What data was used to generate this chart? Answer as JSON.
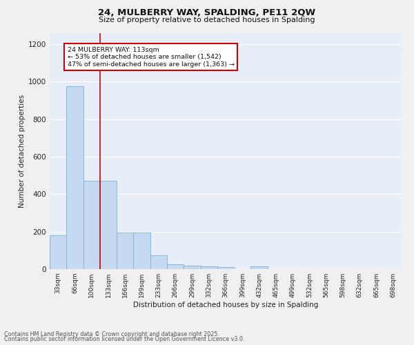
{
  "title1": "24, MULBERRY WAY, SPALDING, PE11 2QW",
  "title2": "Size of property relative to detached houses in Spalding",
  "xlabel": "Distribution of detached houses by size in Spalding",
  "ylabel": "Number of detached properties",
  "categories": [
    "33sqm",
    "66sqm",
    "100sqm",
    "133sqm",
    "166sqm",
    "199sqm",
    "233sqm",
    "266sqm",
    "299sqm",
    "332sqm",
    "366sqm",
    "399sqm",
    "432sqm",
    "465sqm",
    "499sqm",
    "532sqm",
    "565sqm",
    "598sqm",
    "632sqm",
    "665sqm",
    "698sqm"
  ],
  "values": [
    180,
    975,
    470,
    470,
    195,
    195,
    75,
    25,
    20,
    15,
    10,
    0,
    15,
    0,
    0,
    0,
    0,
    0,
    0,
    0,
    0
  ],
  "bar_color": "#c5d9f0",
  "bar_edge_color": "#7bafd4",
  "fig_background_color": "#f0f0f0",
  "plot_background_color": "#e8eef8",
  "grid_color": "#ffffff",
  "red_line_x": 2.5,
  "annotation_line1": "24 MULBERRY WAY: 113sqm",
  "annotation_line2": "← 53% of detached houses are smaller (1,542)",
  "annotation_line3": "47% of semi-detached houses are larger (1,363) →",
  "annotation_box_color": "#ffffff",
  "annotation_border_color": "#cc0000",
  "ylim": [
    0,
    1260
  ],
  "yticks": [
    0,
    200,
    400,
    600,
    800,
    1000,
    1200
  ],
  "footer1": "Contains HM Land Registry data © Crown copyright and database right 2025.",
  "footer2": "Contains public sector information licensed under the Open Government Licence v3.0."
}
